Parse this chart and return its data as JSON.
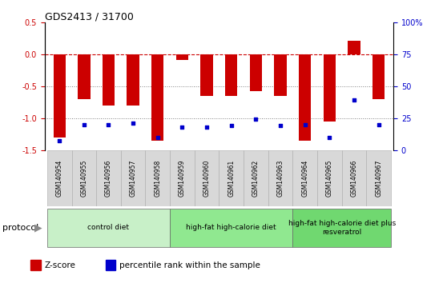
{
  "title": "GDS2413 / 31700",
  "samples": [
    "GSM140954",
    "GSM140955",
    "GSM140956",
    "GSM140957",
    "GSM140958",
    "GSM140959",
    "GSM140960",
    "GSM140961",
    "GSM140962",
    "GSM140963",
    "GSM140964",
    "GSM140965",
    "GSM140966",
    "GSM140967"
  ],
  "z_scores": [
    -1.3,
    -0.7,
    -0.8,
    -0.8,
    -1.35,
    -0.08,
    -0.65,
    -0.65,
    -0.58,
    -0.65,
    -1.35,
    -1.05,
    0.22,
    -0.7
  ],
  "percentile_ranks": [
    7,
    20,
    20,
    21,
    10,
    18,
    18,
    19,
    24,
    19,
    20,
    10,
    39,
    20
  ],
  "bar_color": "#cc0000",
  "dot_color": "#0000cc",
  "refline_color": "#cc0000",
  "ylim_left": [
    -1.5,
    0.5
  ],
  "ylim_right": [
    0,
    100
  ],
  "yticks_left": [
    -1.5,
    -1.0,
    -0.5,
    0.0,
    0.5
  ],
  "yticks_right": [
    0,
    25,
    50,
    75,
    100
  ],
  "ytick_labels_right": [
    "0",
    "25",
    "50",
    "75",
    "100%"
  ],
  "groups": [
    {
      "label": "control diet",
      "start": 0,
      "end": 4,
      "color": "#c8f0c8"
    },
    {
      "label": "high-fat high-calorie diet",
      "start": 5,
      "end": 9,
      "color": "#90e890"
    },
    {
      "label": "high-fat high-calorie diet plus\nresveratrol",
      "start": 10,
      "end": 13,
      "color": "#70d870"
    }
  ],
  "protocol_label": "protocol",
  "legend_zscore": "Z-score",
  "legend_pct": "percentile rank within the sample",
  "bar_width": 0.5,
  "xlabel_bg_color": "#d8d8d8",
  "group_border_color": "#666666"
}
